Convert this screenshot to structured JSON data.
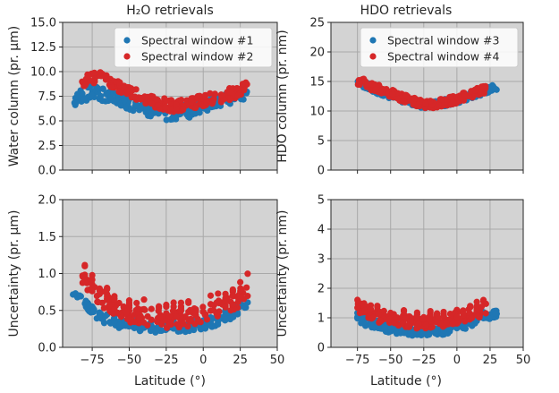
{
  "colors": {
    "blue": "#1f77b4",
    "red": "#d62728",
    "panel_bg": "#d3d3d3",
    "grid": "#a9a9a9"
  },
  "titles": {
    "left": "H₂O retrievals",
    "right": "HDO retrievals"
  },
  "xlabel": "Latitude (°)",
  "chart_data": [
    {
      "type": "scatter",
      "panel": "top-left",
      "title": "H₂O retrievals",
      "ylabel": "Water column (pr. μm)",
      "xlim": [
        -95,
        50
      ],
      "ylim": [
        0,
        15
      ],
      "xticks": [
        -75,
        -50,
        -25,
        0,
        25,
        50
      ],
      "yticks": [
        0.0,
        2.5,
        5.0,
        7.5,
        10.0,
        12.5,
        15.0
      ],
      "ytick_labels": [
        "0.0",
        "2.5",
        "5.0",
        "7.5",
        "10.0",
        "12.5",
        "15.0"
      ],
      "grid": true,
      "legend": "top-right",
      "series": [
        {
          "name": "Spectral window #1",
          "color": "#1f77b4",
          "x_range": [
            -88,
            30
          ],
          "trend": [
            [
              -88,
              7.0
            ],
            [
              -75,
              8.0
            ],
            [
              -60,
              7.4
            ],
            [
              -45,
              6.6
            ],
            [
              -30,
              5.8
            ],
            [
              -20,
              5.7
            ],
            [
              -10,
              6.0
            ],
            [
              0,
              6.6
            ],
            [
              10,
              7.0
            ],
            [
              20,
              7.4
            ],
            [
              30,
              8.0
            ]
          ],
          "spread": 0.7
        },
        {
          "name": "Spectral window #2",
          "color": "#d62728",
          "x_range": [
            -82,
            30
          ],
          "trend": [
            [
              -82,
              9.0
            ],
            [
              -70,
              9.6
            ],
            [
              -60,
              8.8
            ],
            [
              -50,
              7.9
            ],
            [
              -40,
              7.3
            ],
            [
              -30,
              6.8
            ],
            [
              -20,
              6.5
            ],
            [
              -10,
              6.7
            ],
            [
              0,
              7.1
            ],
            [
              10,
              7.4
            ],
            [
              20,
              7.8
            ],
            [
              30,
              8.4
            ]
          ],
          "spread": 0.6
        }
      ]
    },
    {
      "type": "scatter",
      "panel": "top-right",
      "title": "HDO retrievals",
      "ylabel": "HDO column (pr. nm)",
      "xlim": [
        -95,
        50
      ],
      "ylim": [
        0,
        25
      ],
      "xticks": [
        -75,
        -50,
        -25,
        0,
        25,
        50
      ],
      "yticks": [
        0,
        5,
        10,
        15,
        20,
        25
      ],
      "ytick_labels": [
        "0",
        "5",
        "10",
        "15",
        "20",
        "25"
      ],
      "grid": true,
      "legend": "top-right",
      "series": [
        {
          "name": "Spectral window #3",
          "color": "#1f77b4",
          "x_range": [
            -75,
            30
          ],
          "trend": [
            [
              -75,
              15.0
            ],
            [
              -60,
              13.5
            ],
            [
              -45,
              12.3
            ],
            [
              -30,
              11.2
            ],
            [
              -20,
              11.0
            ],
            [
              -10,
              11.4
            ],
            [
              0,
              11.8
            ],
            [
              10,
              12.6
            ],
            [
              20,
              13.4
            ],
            [
              30,
              14.0
            ]
          ],
          "spread": 0.6
        },
        {
          "name": "Spectral window #4",
          "color": "#d62728",
          "x_range": [
            -75,
            22
          ],
          "trend": [
            [
              -75,
              15.2
            ],
            [
              -60,
              13.8
            ],
            [
              -45,
              12.6
            ],
            [
              -30,
              11.4
            ],
            [
              -20,
              11.1
            ],
            [
              -10,
              11.5
            ],
            [
              0,
              12.0
            ],
            [
              10,
              12.8
            ],
            [
              22,
              13.8
            ]
          ],
          "spread": 0.7
        }
      ]
    },
    {
      "type": "scatter",
      "panel": "bottom-left",
      "ylabel": "Uncertainty (pr. μm)",
      "xlim": [
        -95,
        50
      ],
      "ylim": [
        0,
        2
      ],
      "xticks": [
        -75,
        -50,
        -25,
        0,
        25,
        50
      ],
      "yticks": [
        0.0,
        0.5,
        1.0,
        1.5,
        2.0
      ],
      "ytick_labels": [
        "0.0",
        "0.5",
        "1.0",
        "1.5",
        "2.0"
      ],
      "xtick_labels": [
        "−75",
        "−50",
        "−25",
        "0",
        "25",
        "50"
      ],
      "grid": true,
      "series": [
        {
          "name": "Spectral window #1",
          "color": "#1f77b4",
          "x_range": [
            -88,
            30
          ],
          "trend": [
            [
              -88,
              0.72
            ],
            [
              -80,
              0.6
            ],
            [
              -70,
              0.4
            ],
            [
              -55,
              0.3
            ],
            [
              -40,
              0.27
            ],
            [
              -25,
              0.25
            ],
            [
              -10,
              0.27
            ],
            [
              0,
              0.3
            ],
            [
              10,
              0.36
            ],
            [
              20,
              0.45
            ],
            [
              30,
              0.62
            ]
          ],
          "spread": 0.06
        },
        {
          "name": "Spectral window #2",
          "color": "#d62728",
          "x_range": [
            -82,
            30
          ],
          "trend": [
            [
              -82,
              0.95
            ],
            [
              -75,
              0.78
            ],
            [
              -65,
              0.58
            ],
            [
              -50,
              0.46
            ],
            [
              -35,
              0.4
            ],
            [
              -25,
              0.38
            ],
            [
              -10,
              0.4
            ],
            [
              0,
              0.46
            ],
            [
              10,
              0.52
            ],
            [
              20,
              0.6
            ],
            [
              30,
              0.78
            ]
          ],
          "spread": 0.12
        }
      ]
    },
    {
      "type": "scatter",
      "panel": "bottom-right",
      "ylabel": "Uncertainty (pr. nm)",
      "xlim": [
        -95,
        50
      ],
      "ylim": [
        0,
        5
      ],
      "xticks": [
        -75,
        -50,
        -25,
        0,
        25,
        50
      ],
      "yticks": [
        0,
        1,
        2,
        3,
        4,
        5
      ],
      "ytick_labels": [
        "0",
        "1",
        "2",
        "3",
        "4",
        "5"
      ],
      "xtick_labels": [
        "−75",
        "−50",
        "−25",
        "0",
        "25",
        "50"
      ],
      "grid": true,
      "series": [
        {
          "name": "Spectral window #3",
          "color": "#1f77b4",
          "x_range": [
            -75,
            30
          ],
          "trend": [
            [
              -75,
              1.0
            ],
            [
              -65,
              0.75
            ],
            [
              -50,
              0.6
            ],
            [
              -35,
              0.52
            ],
            [
              -25,
              0.5
            ],
            [
              -10,
              0.55
            ],
            [
              0,
              0.65
            ],
            [
              10,
              0.8
            ],
            [
              20,
              1.0
            ],
            [
              30,
              1.15
            ]
          ],
          "spread": 0.12
        },
        {
          "name": "Spectral window #4",
          "color": "#d62728",
          "x_range": [
            -75,
            22
          ],
          "trend": [
            [
              -75,
              1.4
            ],
            [
              -65,
              1.1
            ],
            [
              -50,
              0.95
            ],
            [
              -35,
              0.85
            ],
            [
              -25,
              0.82
            ],
            [
              -10,
              0.9
            ],
            [
              0,
              1.0
            ],
            [
              10,
              1.1
            ],
            [
              22,
              1.3
            ]
          ],
          "spread": 0.2
        }
      ]
    }
  ]
}
